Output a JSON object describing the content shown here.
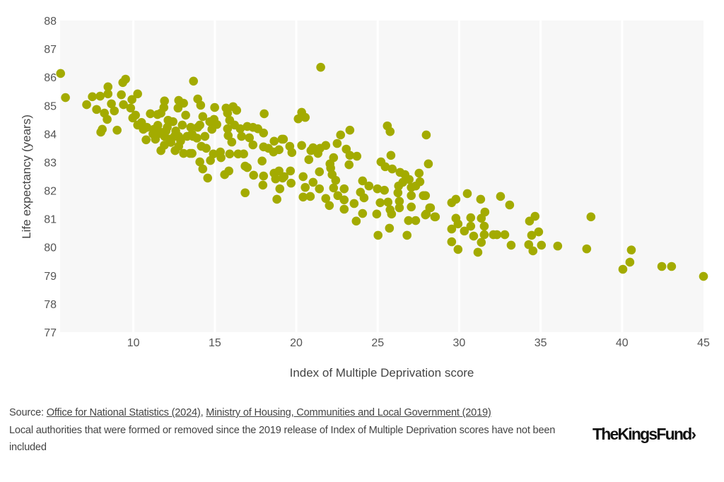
{
  "chart_data": {
    "type": "scatter",
    "title": "",
    "xlabel": "Index of Multiple Deprivation score",
    "ylabel": "Life expectancy (years)",
    "xlim": [
      5.5,
      45
    ],
    "ylim": [
      77,
      88
    ],
    "xticks": [
      10,
      15,
      20,
      25,
      30,
      35,
      40,
      45
    ],
    "yticks": [
      77,
      78,
      79,
      80,
      81,
      82,
      83,
      84,
      85,
      86,
      87,
      88
    ],
    "grid": "vertical",
    "color": "#a3ab00",
    "points": [
      [
        29.54,
        81.57
      ],
      [
        29.8,
        81.69
      ],
      [
        30.5,
        81.89
      ],
      [
        31.32,
        81.69
      ],
      [
        32.54,
        81.79
      ],
      [
        33.1,
        81.49
      ],
      [
        28.19,
        81.39
      ],
      [
        28.5,
        81.07
      ],
      [
        29.8,
        81.02
      ],
      [
        29.93,
        80.82
      ],
      [
        29.54,
        80.64
      ],
      [
        30.71,
        81.04
      ],
      [
        30.71,
        80.74
      ],
      [
        30.32,
        80.57
      ],
      [
        30.89,
        80.39
      ],
      [
        31.58,
        81.24
      ],
      [
        31.36,
        81.02
      ],
      [
        31.54,
        80.74
      ],
      [
        31.54,
        80.44
      ],
      [
        31.36,
        80.17
      ],
      [
        31.15,
        79.82
      ],
      [
        29.93,
        79.92
      ],
      [
        29.54,
        80.19
      ],
      [
        32.1,
        80.44
      ],
      [
        32.32,
        80.44
      ],
      [
        32.8,
        80.44
      ],
      [
        33.19,
        80.07
      ],
      [
        34.32,
        80.92
      ],
      [
        34.66,
        81.09
      ],
      [
        34.88,
        80.54
      ],
      [
        34.45,
        80.42
      ],
      [
        34.27,
        80.09
      ],
      [
        34.53,
        79.87
      ],
      [
        35.05,
        80.07
      ],
      [
        36.05,
        80.04
      ],
      [
        37.83,
        79.94
      ],
      [
        38.09,
        81.07
      ],
      [
        40.57,
        79.9
      ],
      [
        40.48,
        79.47
      ],
      [
        40.05,
        79.22
      ],
      [
        42.44,
        79.32
      ],
      [
        43.04,
        79.32
      ],
      [
        45.0,
        78.97
      ],
      [
        27.98,
        83.96
      ],
      [
        28.11,
        82.94
      ],
      [
        27.93,
        81.82
      ],
      [
        27.98,
        81.17
      ],
      [
        20.33,
        84.76
      ],
      [
        20.12,
        84.53
      ],
      [
        20.55,
        84.58
      ],
      [
        19.21,
        83.81
      ],
      [
        19.6,
        83.56
      ],
      [
        19.73,
        83.34
      ],
      [
        20.33,
        83.59
      ],
      [
        20.77,
        83.09
      ],
      [
        20.9,
        83.41
      ],
      [
        21.03,
        83.51
      ],
      [
        21.33,
        83.31
      ],
      [
        21.46,
        83.49
      ],
      [
        21.81,
        83.59
      ],
      [
        22.51,
        83.66
      ],
      [
        22.72,
        83.96
      ],
      [
        23.29,
        84.13
      ],
      [
        23.07,
        83.46
      ],
      [
        23.29,
        83.24
      ],
      [
        23.72,
        83.21
      ],
      [
        23.24,
        82.91
      ],
      [
        22.29,
        83.16
      ],
      [
        22.07,
        82.94
      ],
      [
        22.11,
        82.79
      ],
      [
        22.2,
        82.56
      ],
      [
        22.42,
        82.36
      ],
      [
        22.29,
        82.09
      ],
      [
        22.55,
        81.82
      ],
      [
        22.94,
        82.06
      ],
      [
        22.94,
        81.67
      ],
      [
        22.94,
        81.34
      ],
      [
        23.55,
        81.54
      ],
      [
        24.07,
        82.34
      ],
      [
        24.46,
        82.16
      ],
      [
        23.94,
        81.94
      ],
      [
        24.16,
        81.74
      ],
      [
        24.07,
        81.19
      ],
      [
        23.68,
        80.92
      ],
      [
        24.98,
        82.06
      ],
      [
        25.41,
        82.01
      ],
      [
        25.15,
        81.57
      ],
      [
        25.63,
        81.59
      ],
      [
        24.94,
        81.17
      ],
      [
        25.72,
        80.67
      ],
      [
        25.02,
        80.42
      ],
      [
        25.59,
        84.28
      ],
      [
        25.76,
        84.08
      ],
      [
        25.81,
        83.24
      ],
      [
        25.2,
        83.01
      ],
      [
        25.46,
        82.84
      ],
      [
        25.89,
        82.76
      ],
      [
        26.37,
        82.64
      ],
      [
        26.67,
        82.56
      ],
      [
        26.93,
        82.39
      ],
      [
        26.54,
        82.29
      ],
      [
        26.28,
        82.16
      ],
      [
        26.24,
        81.92
      ],
      [
        26.33,
        81.62
      ],
      [
        26.33,
        81.39
      ],
      [
        25.76,
        81.32
      ],
      [
        25.85,
        81.17
      ],
      [
        27.06,
        82.11
      ],
      [
        27.06,
        81.82
      ],
      [
        27.33,
        82.16
      ],
      [
        27.54,
        82.61
      ],
      [
        27.59,
        82.31
      ],
      [
        27.8,
        81.82
      ],
      [
        27.06,
        81.42
      ],
      [
        26.89,
        80.94
      ],
      [
        27.33,
        80.94
      ],
      [
        26.8,
        80.42
      ],
      [
        27.93,
        81.14
      ],
      [
        28.24,
        81.39
      ],
      [
        28.54,
        81.07
      ],
      [
        20.42,
        82.49
      ],
      [
        21.42,
        82.66
      ],
      [
        20.55,
        82.11
      ],
      [
        21.03,
        82.29
      ],
      [
        21.42,
        82.06
      ],
      [
        20.42,
        81.77
      ],
      [
        20.86,
        81.79
      ],
      [
        21.81,
        81.72
      ],
      [
        22.03,
        81.47
      ],
      [
        19.68,
        82.26
      ],
      [
        19.64,
        82.69
      ],
      [
        19.25,
        82.49
      ],
      [
        21.5,
        86.35
      ],
      [
        14.13,
        85.01
      ],
      [
        14.99,
        84.93
      ],
      [
        15.69,
        84.91
      ],
      [
        16.12,
        84.96
      ],
      [
        16.34,
        84.83
      ],
      [
        15.78,
        84.73
      ],
      [
        18.03,
        84.71
      ],
      [
        14.26,
        84.61
      ],
      [
        14.69,
        84.43
      ],
      [
        14.95,
        84.51
      ],
      [
        15.12,
        84.33
      ],
      [
        14.82,
        84.16
      ],
      [
        14.08,
        84.31
      ],
      [
        14.39,
        83.91
      ],
      [
        13.65,
        83.91
      ],
      [
        13.95,
        84.23
      ],
      [
        15.91,
        84.48
      ],
      [
        16.21,
        84.31
      ],
      [
        15.78,
        84.18
      ],
      [
        16.56,
        84.18
      ],
      [
        16.99,
        84.26
      ],
      [
        17.34,
        84.23
      ],
      [
        17.64,
        84.18
      ],
      [
        17.99,
        84.03
      ],
      [
        16.64,
        83.91
      ],
      [
        17.12,
        83.86
      ],
      [
        15.82,
        83.94
      ],
      [
        16.04,
        83.71
      ],
      [
        17.34,
        83.61
      ],
      [
        17.99,
        83.54
      ],
      [
        18.29,
        83.49
      ],
      [
        18.64,
        83.74
      ],
      [
        19.12,
        83.81
      ],
      [
        18.6,
        83.36
      ],
      [
        18.94,
        83.44
      ],
      [
        14.17,
        83.56
      ],
      [
        14.47,
        83.49
      ],
      [
        14.91,
        83.29
      ],
      [
        15.34,
        83.36
      ],
      [
        15.91,
        83.29
      ],
      [
        16.43,
        83.29
      ],
      [
        16.77,
        83.29
      ],
      [
        15.38,
        83.16
      ],
      [
        13.6,
        83.31
      ],
      [
        14.73,
        83.06
      ],
      [
        14.08,
        83.01
      ],
      [
        14.26,
        82.76
      ],
      [
        14.56,
        82.44
      ],
      [
        15.6,
        82.56
      ],
      [
        15.86,
        82.69
      ],
      [
        16.86,
        82.86
      ],
      [
        16.99,
        82.81
      ],
      [
        17.38,
        82.54
      ],
      [
        17.9,
        83.04
      ],
      [
        17.99,
        82.51
      ],
      [
        17.95,
        82.19
      ],
      [
        16.86,
        81.92
      ],
      [
        18.64,
        82.61
      ],
      [
        18.94,
        82.69
      ],
      [
        18.73,
        82.41
      ],
      [
        19.16,
        82.44
      ],
      [
        18.99,
        82.06
      ],
      [
        18.81,
        81.69
      ],
      [
        5.53,
        86.13
      ],
      [
        5.83,
        85.28
      ],
      [
        7.13,
        85.03
      ],
      [
        7.48,
        85.31
      ],
      [
        7.96,
        85.33
      ],
      [
        8.44,
        85.66
      ],
      [
        8.44,
        85.41
      ],
      [
        8.65,
        85.06
      ],
      [
        7.74,
        84.86
      ],
      [
        8.22,
        84.73
      ],
      [
        8.39,
        84.51
      ],
      [
        8.83,
        84.81
      ],
      [
        8.0,
        84.06
      ],
      [
        8.09,
        84.16
      ],
      [
        9.0,
        84.13
      ],
      [
        9.52,
        85.93
      ],
      [
        9.35,
        85.81
      ],
      [
        9.26,
        85.38
      ],
      [
        10.26,
        85.41
      ],
      [
        9.91,
        85.21
      ],
      [
        9.39,
        85.03
      ],
      [
        9.83,
        84.91
      ],
      [
        10.13,
        84.66
      ],
      [
        9.96,
        84.56
      ],
      [
        10.26,
        84.31
      ],
      [
        10.61,
        84.16
      ],
      [
        10.83,
        84.23
      ],
      [
        10.78,
        83.79
      ],
      [
        11.04,
        84.71
      ],
      [
        11.48,
        84.68
      ],
      [
        11.91,
        85.16
      ],
      [
        11.87,
        84.93
      ],
      [
        11.69,
        84.73
      ],
      [
        11.26,
        84.16
      ],
      [
        11.48,
        83.99
      ],
      [
        11.35,
        83.81
      ],
      [
        11.69,
        83.41
      ],
      [
        11.91,
        83.91
      ],
      [
        12.13,
        84.48
      ],
      [
        12.43,
        84.43
      ],
      [
        12.08,
        84.23
      ],
      [
        12.21,
        83.81
      ],
      [
        12.52,
        83.91
      ],
      [
        12.56,
        83.41
      ],
      [
        12.78,
        85.18
      ],
      [
        13.08,
        85.08
      ],
      [
        12.74,
        84.91
      ],
      [
        13.21,
        84.66
      ],
      [
        13.0,
        84.31
      ],
      [
        12.78,
        83.91
      ],
      [
        12.78,
        83.56
      ],
      [
        13.3,
        83.91
      ],
      [
        13.6,
        83.99
      ],
      [
        13.08,
        83.31
      ],
      [
        13.47,
        83.31
      ],
      [
        13.69,
        85.86
      ],
      [
        13.95,
        85.23
      ],
      [
        13.52,
        84.23
      ],
      [
        11.2,
        84.0
      ],
      [
        11.7,
        84.05
      ],
      [
        12.0,
        84.1
      ],
      [
        12.3,
        83.7
      ],
      [
        11.9,
        83.6
      ],
      [
        12.6,
        84.1
      ],
      [
        13.9,
        83.85
      ],
      [
        10.5,
        84.4
      ],
      [
        11.5,
        84.3
      ],
      [
        12.9,
        83.75
      ]
    ]
  },
  "footer": {
    "source_prefix": "Source: ",
    "source_link_1": "Office for National Statistics (2024)",
    "separator": ", ",
    "source_link_2": "Ministry of Housing, Communities and Local Government (2019)",
    "note": "Local authorities that were formed or removed since the 2019 release of Index of Multiple Deprivation scores have not been included"
  },
  "logo": "The King's Fund›"
}
